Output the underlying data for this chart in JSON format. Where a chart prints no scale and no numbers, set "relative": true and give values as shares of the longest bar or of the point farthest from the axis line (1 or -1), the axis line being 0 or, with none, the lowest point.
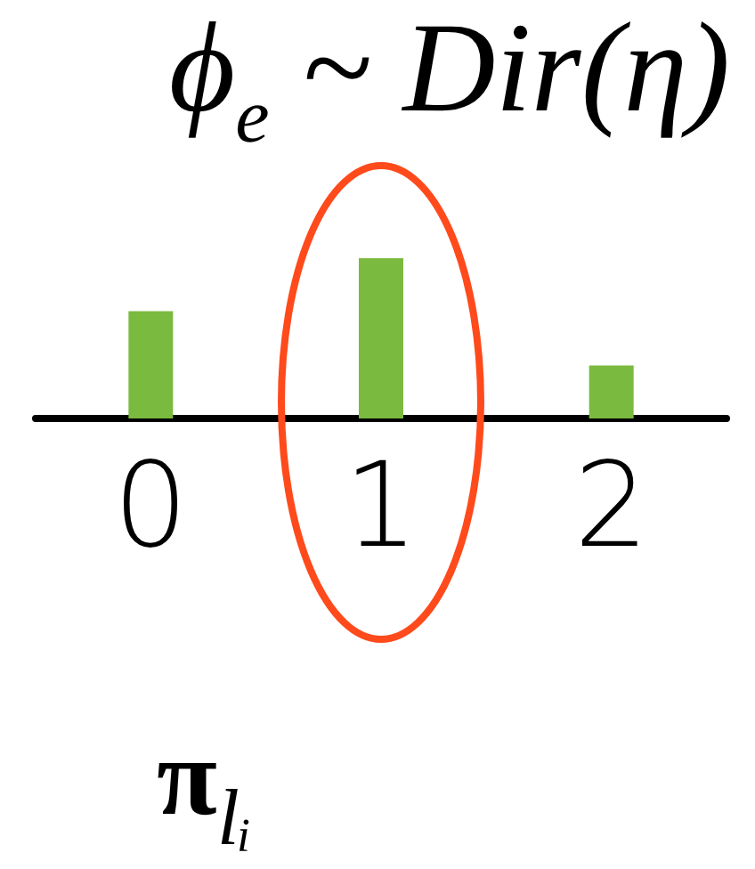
{
  "chart_data": {
    "type": "bar",
    "title": "ϕ$_{e}$ ~ Dir(η)",
    "categories": [
      "0",
      "1",
      "2"
    ],
    "values": [
      0.67,
      1,
      0.33
    ],
    "color": "#7aba3f",
    "relative": true,
    "annotations": [
      "π$_{lᵢ}$"
    ]
  }
}
